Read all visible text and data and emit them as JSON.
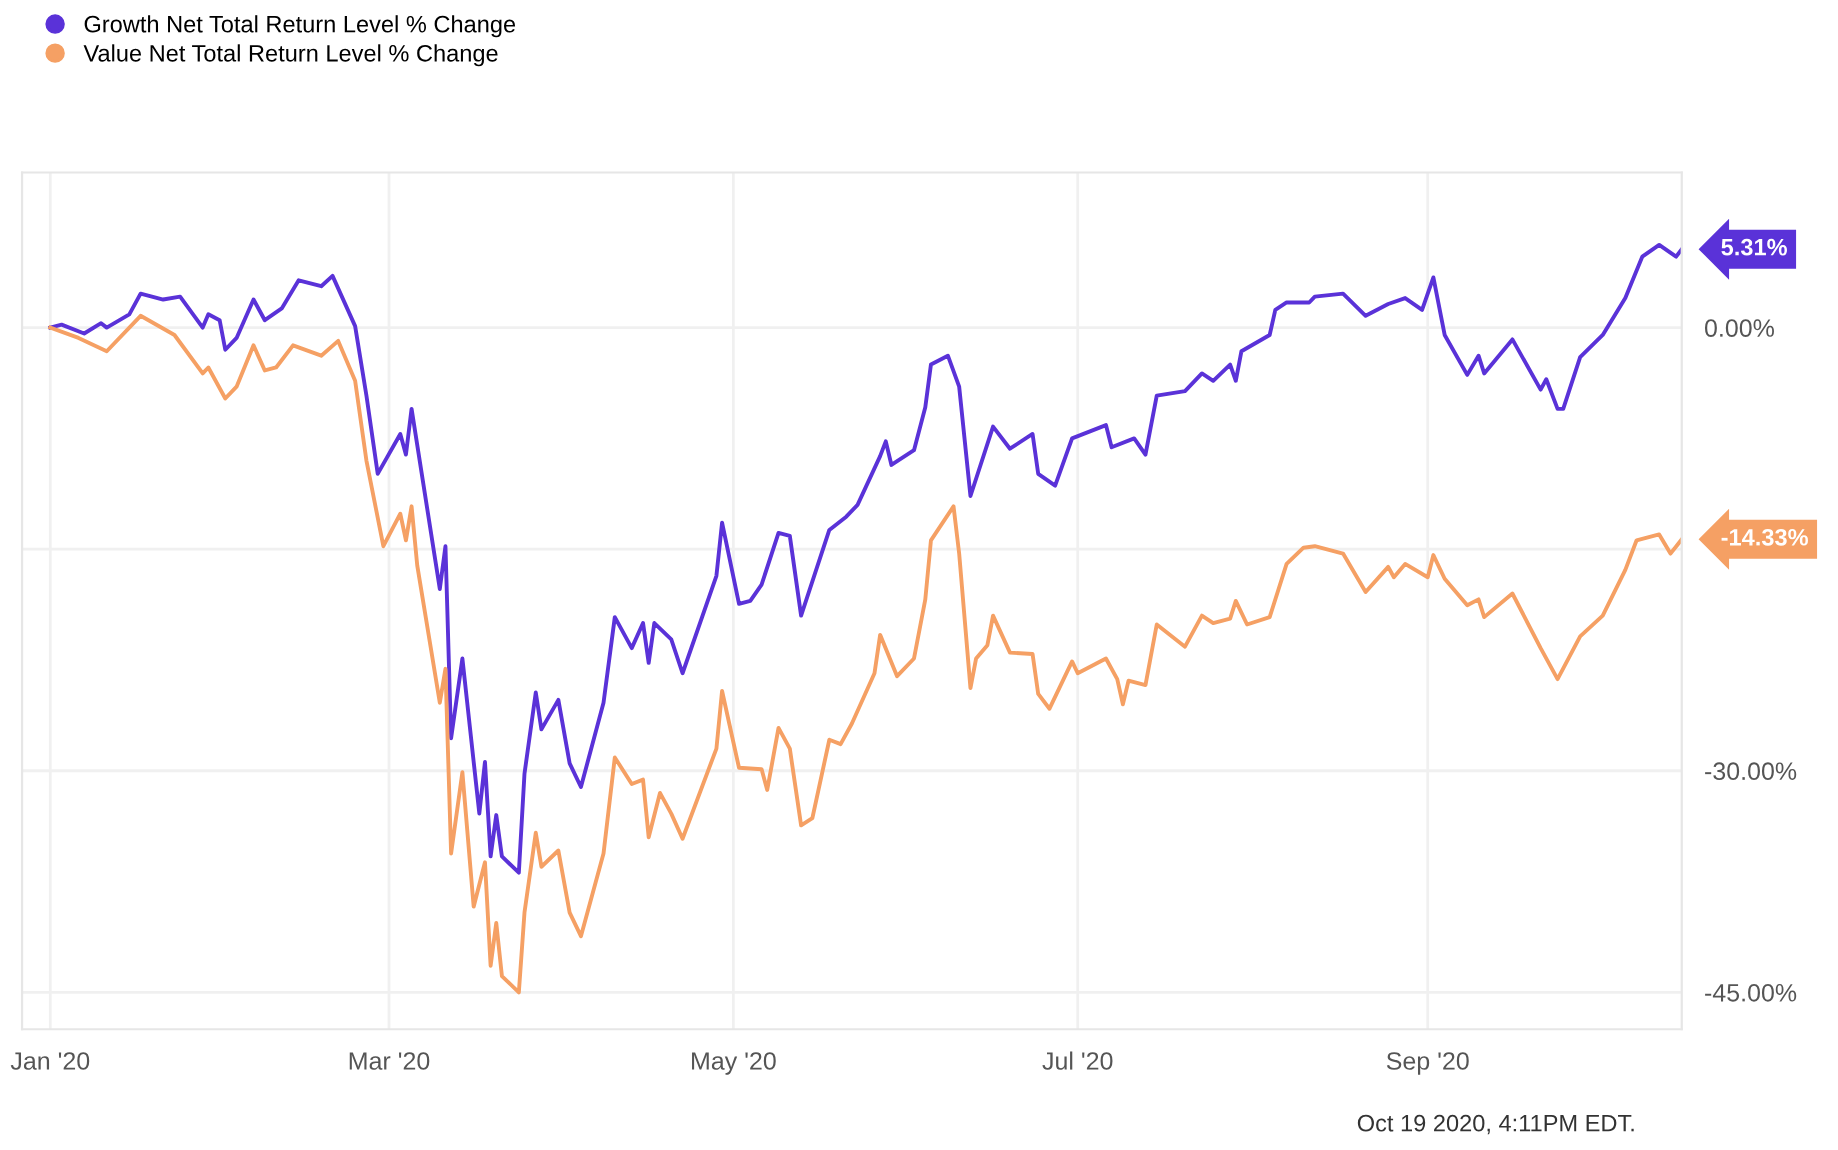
{
  "chart_data": {
    "type": "line",
    "legend": "top left",
    "grid": true,
    "ylim": [
      -47.5,
      10.5
    ],
    "xlim": [
      "2019-12-27",
      "2020-10-16"
    ],
    "yticks": [
      {
        "value": 0,
        "label": "0.00%"
      },
      {
        "value": -15,
        "label": null
      },
      {
        "value": -30,
        "label": "-30.00%"
      },
      {
        "value": -45,
        "label": "-45.00%"
      }
    ],
    "xticks": [
      {
        "value": "2020-01-01",
        "label": "Jan '20"
      },
      {
        "value": "2020-03-01",
        "label": "Mar '20"
      },
      {
        "value": "2020-05-01",
        "label": "May '20"
      },
      {
        "value": "2020-07-01",
        "label": "Jul '20"
      },
      {
        "value": "2020-09-01",
        "label": "Sep '20"
      }
    ],
    "series": [
      {
        "name": "Growth Net Total Return Level % Change",
        "color": "#5a32d8",
        "x": [
          "2020-01-01",
          "2020-01-03",
          "2020-01-07",
          "2020-01-10",
          "2020-01-11",
          "2020-01-15",
          "2020-01-17",
          "2020-01-21",
          "2020-01-24",
          "2020-01-28",
          "2020-01-29",
          "2020-01-31",
          "2020-02-01",
          "2020-02-03",
          "2020-02-06",
          "2020-02-08",
          "2020-02-11",
          "2020-02-14",
          "2020-02-18",
          "2020-02-20",
          "2020-02-24",
          "2020-02-26",
          "2020-02-28",
          "2020-03-03",
          "2020-03-04",
          "2020-03-05",
          "2020-03-10",
          "2020-03-11",
          "2020-03-12",
          "2020-03-14",
          "2020-03-17",
          "2020-03-18",
          "2020-03-19",
          "2020-03-20",
          "2020-03-21",
          "2020-03-24",
          "2020-03-25",
          "2020-03-27",
          "2020-03-28",
          "2020-03-31",
          "2020-04-02",
          "2020-04-04",
          "2020-04-08",
          "2020-04-10",
          "2020-04-13",
          "2020-04-15",
          "2020-04-16",
          "2020-04-17",
          "2020-04-20",
          "2020-04-22",
          "2020-04-28",
          "2020-04-29",
          "2020-05-02",
          "2020-05-04",
          "2020-05-06",
          "2020-05-09",
          "2020-05-11",
          "2020-05-13",
          "2020-05-18",
          "2020-05-21",
          "2020-05-23",
          "2020-05-27",
          "2020-05-28",
          "2020-05-29",
          "2020-06-02",
          "2020-06-04",
          "2020-06-05",
          "2020-06-08",
          "2020-06-10",
          "2020-06-12",
          "2020-06-16",
          "2020-06-19",
          "2020-06-23",
          "2020-06-24",
          "2020-06-27",
          "2020-06-30",
          "2020-07-06",
          "2020-07-07",
          "2020-07-11",
          "2020-07-13",
          "2020-07-15",
          "2020-07-20",
          "2020-07-23",
          "2020-07-25",
          "2020-07-28",
          "2020-07-29",
          "2020-07-30",
          "2020-08-04",
          "2020-08-05",
          "2020-08-07",
          "2020-08-11",
          "2020-08-12",
          "2020-08-17",
          "2020-08-21",
          "2020-08-25",
          "2020-08-28",
          "2020-08-31",
          "2020-09-02",
          "2020-09-04",
          "2020-09-08",
          "2020-09-10",
          "2020-09-11",
          "2020-09-16",
          "2020-09-21",
          "2020-09-22",
          "2020-09-24",
          "2020-09-25",
          "2020-09-28",
          "2020-10-02",
          "2020-10-06",
          "2020-10-09",
          "2020-10-12",
          "2020-10-15",
          "2020-10-16"
        ],
        "values": [
          0.0,
          0.2,
          -0.4,
          0.3,
          0.0,
          0.9,
          2.3,
          1.9,
          2.1,
          0.0,
          0.9,
          0.5,
          -1.5,
          -0.7,
          1.9,
          0.5,
          1.3,
          3.2,
          2.8,
          3.5,
          0.1,
          -4.6,
          -9.9,
          -7.2,
          -8.6,
          -5.5,
          -17.7,
          -14.8,
          -27.8,
          -22.4,
          -32.9,
          -29.4,
          -35.8,
          -33.0,
          -35.8,
          -36.9,
          -30.2,
          -24.7,
          -27.2,
          -25.2,
          -29.5,
          -31.1,
          -25.4,
          -19.6,
          -21.7,
          -20.0,
          -22.7,
          -20.0,
          -21.1,
          -23.4,
          -16.8,
          -13.2,
          -18.7,
          -18.5,
          -17.4,
          -13.9,
          -14.1,
          -19.5,
          -13.7,
          -12.8,
          -12.0,
          -8.7,
          -7.7,
          -9.3,
          -8.3,
          -5.4,
          -2.5,
          -1.9,
          -4.0,
          -11.4,
          -6.7,
          -8.2,
          -7.2,
          -9.9,
          -10.7,
          -7.5,
          -6.6,
          -8.1,
          -7.5,
          -8.6,
          -4.6,
          -4.3,
          -3.1,
          -3.6,
          -2.5,
          -3.6,
          -1.6,
          -0.5,
          1.2,
          1.7,
          1.7,
          2.1,
          2.3,
          0.8,
          1.6,
          2.0,
          1.2,
          3.4,
          -0.5,
          -3.2,
          -1.9,
          -3.1,
          -0.8,
          -4.2,
          -3.5,
          -5.5,
          -5.5,
          -2.0,
          -0.5,
          2.0,
          4.8,
          5.6,
          4.8,
          5.31
        ]
      },
      {
        "name": "Value Net Total Return Level % Change",
        "color": "#f5a064",
        "x": [
          "2020-01-01",
          "2020-01-06",
          "2020-01-11",
          "2020-01-17",
          "2020-01-23",
          "2020-01-28",
          "2020-01-29",
          "2020-02-01",
          "2020-02-03",
          "2020-02-06",
          "2020-02-08",
          "2020-02-10",
          "2020-02-13",
          "2020-02-18",
          "2020-02-21",
          "2020-02-24",
          "2020-02-26",
          "2020-02-29",
          "2020-03-03",
          "2020-03-04",
          "2020-03-05",
          "2020-03-06",
          "2020-03-10",
          "2020-03-11",
          "2020-03-12",
          "2020-03-14",
          "2020-03-16",
          "2020-03-18",
          "2020-03-19",
          "2020-03-20",
          "2020-03-21",
          "2020-03-24",
          "2020-03-25",
          "2020-03-27",
          "2020-03-28",
          "2020-03-31",
          "2020-04-02",
          "2020-04-04",
          "2020-04-08",
          "2020-04-10",
          "2020-04-13",
          "2020-04-15",
          "2020-04-16",
          "2020-04-18",
          "2020-04-20",
          "2020-04-22",
          "2020-04-28",
          "2020-04-29",
          "2020-05-02",
          "2020-05-06",
          "2020-05-07",
          "2020-05-09",
          "2020-05-11",
          "2020-05-13",
          "2020-05-15",
          "2020-05-18",
          "2020-05-20",
          "2020-05-22",
          "2020-05-26",
          "2020-05-27",
          "2020-05-30",
          "2020-06-02",
          "2020-06-04",
          "2020-06-05",
          "2020-06-09",
          "2020-06-10",
          "2020-06-12",
          "2020-06-13",
          "2020-06-15",
          "2020-06-16",
          "2020-06-19",
          "2020-06-23",
          "2020-06-24",
          "2020-06-26",
          "2020-06-30",
          "2020-07-01",
          "2020-07-06",
          "2020-07-08",
          "2020-07-09",
          "2020-07-10",
          "2020-07-13",
          "2020-07-15",
          "2020-07-20",
          "2020-07-23",
          "2020-07-25",
          "2020-07-28",
          "2020-07-29",
          "2020-07-31",
          "2020-08-04",
          "2020-08-07",
          "2020-08-10",
          "2020-08-12",
          "2020-08-17",
          "2020-08-21",
          "2020-08-25",
          "2020-08-26",
          "2020-08-28",
          "2020-09-01",
          "2020-09-02",
          "2020-09-04",
          "2020-09-08",
          "2020-09-10",
          "2020-09-11",
          "2020-09-16",
          "2020-09-21",
          "2020-09-24",
          "2020-09-28",
          "2020-10-02",
          "2020-10-06",
          "2020-10-08",
          "2020-10-12",
          "2020-10-14",
          "2020-10-16"
        ],
        "values": [
          0.0,
          -0.7,
          -1.6,
          0.8,
          -0.5,
          -3.1,
          -2.7,
          -4.8,
          -4.0,
          -1.2,
          -2.9,
          -2.7,
          -1.2,
          -1.9,
          -0.9,
          -3.6,
          -9.0,
          -14.8,
          -12.6,
          -14.4,
          -12.1,
          -16.1,
          -25.4,
          -23.1,
          -35.6,
          -30.1,
          -39.2,
          -36.2,
          -43.2,
          -40.3,
          -43.9,
          -45.0,
          -39.6,
          -34.2,
          -36.5,
          -35.4,
          -39.6,
          -41.2,
          -35.6,
          -29.1,
          -30.9,
          -30.6,
          -34.5,
          -31.5,
          -32.9,
          -34.6,
          -28.5,
          -24.6,
          -29.8,
          -29.9,
          -31.3,
          -27.1,
          -28.5,
          -33.7,
          -33.2,
          -27.9,
          -28.2,
          -26.8,
          -23.4,
          -20.8,
          -23.6,
          -22.4,
          -18.4,
          -14.4,
          -12.1,
          -15.3,
          -24.4,
          -22.4,
          -21.5,
          -19.5,
          -22.0,
          -22.1,
          -24.8,
          -25.8,
          -22.6,
          -23.4,
          -22.4,
          -23.8,
          -25.5,
          -23.9,
          -24.2,
          -20.1,
          -21.6,
          -19.5,
          -20.0,
          -19.7,
          -18.5,
          -20.1,
          -19.6,
          -16.0,
          -14.9,
          -14.8,
          -15.3,
          -17.9,
          -16.2,
          -16.9,
          -16.0,
          -16.9,
          -15.4,
          -17.0,
          -18.8,
          -18.4,
          -19.6,
          -18.0,
          -21.7,
          -23.8,
          -20.9,
          -19.5,
          -16.4,
          -14.4,
          -14.0,
          -15.3,
          -14.33
        ]
      }
    ],
    "annotations": [
      {
        "text": "5.31%",
        "x": "2020-10-16",
        "y": 5.31
      },
      {
        "text": "-14.33%",
        "x": "2020-10-16",
        "y": -14.33
      },
      "Oct 19 2020, 4:11PM EDT."
    ]
  }
}
